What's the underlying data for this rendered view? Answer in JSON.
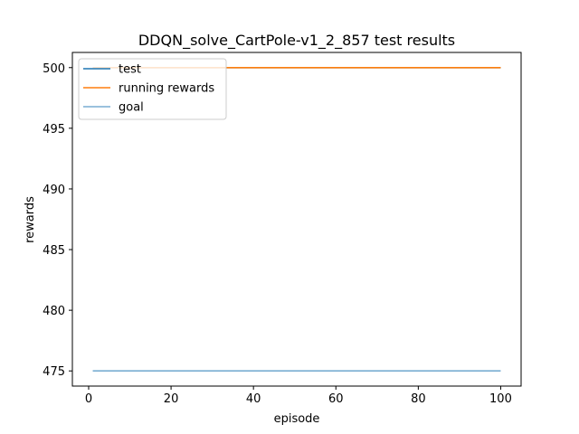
{
  "chart_data": {
    "type": "line",
    "title": "DDQN_solve_CartPole-v1_2_857 test results",
    "xlabel": "episode",
    "ylabel": "rewards",
    "xlim": [
      -3.95,
      104.95
    ],
    "ylim": [
      473.75,
      501.25
    ],
    "xticks": [
      0,
      20,
      40,
      60,
      80,
      100
    ],
    "yticks": [
      475,
      480,
      485,
      490,
      495,
      500
    ],
    "grid": false,
    "legend_position": "top-left",
    "series": [
      {
        "name": "test",
        "color": "#1f77b4",
        "x": [
          1,
          100
        ],
        "y": [
          500,
          500
        ]
      },
      {
        "name": "running rewards",
        "color": "#ff7f0e",
        "x": [
          1,
          100
        ],
        "y": [
          500,
          500
        ]
      },
      {
        "name": "goal",
        "color": "#1f77b4",
        "alpha": 0.6,
        "x": [
          1,
          100
        ],
        "y": [
          475,
          475
        ]
      }
    ]
  }
}
